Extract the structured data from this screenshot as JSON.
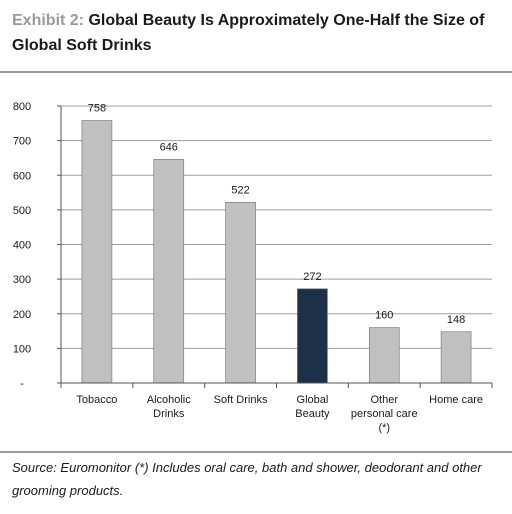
{
  "title": {
    "prefix": "Exhibit 2:",
    "text": "Global Beauty Is Approximately One-Half the Size of Global Soft Drinks"
  },
  "source": "Source: Euromonitor (*) Includes oral care, bath and shower, deodorant and other grooming products.",
  "colors": {
    "default_bar": "#c0c0c0",
    "highlight_bar": "#1c3148",
    "grid": "#9e9e9e",
    "axis": "#555555"
  },
  "chart_data": {
    "type": "bar",
    "categories": [
      "Tobacco",
      "Alcoholic Drinks",
      "Soft Drinks",
      "Global Beauty",
      "Other personal care (*)",
      "Home care"
    ],
    "category_lines": [
      [
        "Tobacco"
      ],
      [
        "Alcoholic",
        "Drinks"
      ],
      [
        "Soft Drinks"
      ],
      [
        "Global",
        "Beauty"
      ],
      [
        "Other",
        "personal care",
        "(*)"
      ],
      [
        "Home care"
      ]
    ],
    "values": [
      758,
      646,
      522,
      272,
      160,
      148
    ],
    "data_labels": [
      "758",
      "646",
      "522",
      "272",
      "160",
      "148"
    ],
    "highlight_index": 3,
    "ylim": [
      0,
      800
    ],
    "yticks": [
      0,
      100,
      200,
      300,
      400,
      500,
      600,
      700,
      800
    ],
    "ytick_labels": [
      "-",
      "100",
      "200",
      "300",
      "400",
      "500",
      "600",
      "700",
      "800"
    ],
    "grid": true,
    "xlabel": "",
    "ylabel": ""
  }
}
